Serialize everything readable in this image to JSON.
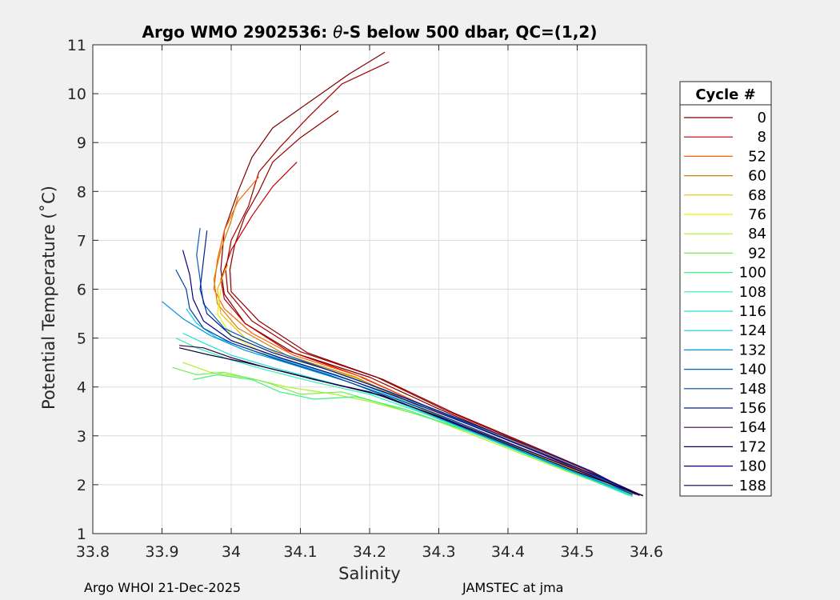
{
  "chart_data": {
    "type": "line",
    "title": "Argo WMO 2902536: θ-S below 500 dbar,  QC=(1,2)",
    "title_parts": {
      "prefix": "Argo WMO 2902536: ",
      "symbol": "θ",
      "suffix": "-S below 500 dbar,  QC=(1,2)"
    },
    "xlabel": "Salinity",
    "ylabel": "Potential Temperature (˚C)",
    "xlim": [
      33.8,
      34.6
    ],
    "ylim": [
      1,
      11
    ],
    "xticks": [
      33.8,
      33.9,
      34.0,
      34.1,
      34.2,
      34.3,
      34.4,
      34.5,
      34.6
    ],
    "xtick_labels": [
      "33.8",
      "33.9",
      "34",
      "34.1",
      "34.2",
      "34.3",
      "34.4",
      "34.5",
      "34.6"
    ],
    "yticks": [
      1,
      2,
      3,
      4,
      5,
      6,
      7,
      8,
      9,
      10,
      11
    ],
    "ytick_labels": [
      "1",
      "2",
      "3",
      "4",
      "5",
      "6",
      "7",
      "8",
      "9",
      "10",
      "11"
    ],
    "grid": true,
    "legend": {
      "title": "Cycle #",
      "placement": "right",
      "entries": [
        {
          "label": "0",
          "color": "#800000"
        },
        {
          "label": "8",
          "color": "#b00000"
        },
        {
          "label": "52",
          "color": "#ff6000"
        },
        {
          "label": "60",
          "color": "#d08000"
        },
        {
          "label": "68",
          "color": "#e8c000"
        },
        {
          "label": "76",
          "color": "#f0f000"
        },
        {
          "label": "84",
          "color": "#b0f020"
        },
        {
          "label": "92",
          "color": "#70f050"
        },
        {
          "label": "100",
          "color": "#40f080"
        },
        {
          "label": "108",
          "color": "#30f0b0"
        },
        {
          "label": "116",
          "color": "#20e0d0"
        },
        {
          "label": "124",
          "color": "#10c8f0"
        },
        {
          "label": "132",
          "color": "#0090e0"
        },
        {
          "label": "140",
          "color": "#0060c0"
        },
        {
          "label": "148",
          "color": "#0040a0"
        },
        {
          "label": "156",
          "color": "#002090"
        },
        {
          "label": "164",
          "color": "#400050"
        },
        {
          "label": "172",
          "color": "#100050"
        },
        {
          "label": "180",
          "color": "#000080"
        },
        {
          "label": "188",
          "color": "#000040"
        }
      ]
    },
    "series": [
      {
        "color": "#800000",
        "points": [
          [
            34.222,
            10.85
          ],
          [
            34.17,
            10.4
          ],
          [
            34.1,
            9.7
          ],
          [
            34.06,
            9.3
          ],
          [
            34.03,
            8.7
          ],
          [
            34.01,
            8.0
          ],
          [
            33.99,
            7.2
          ],
          [
            33.985,
            6.4
          ],
          [
            33.99,
            5.9
          ],
          [
            34.02,
            5.3
          ],
          [
            34.09,
            4.7
          ],
          [
            34.2,
            4.2
          ],
          [
            34.3,
            3.55
          ],
          [
            34.4,
            2.95
          ],
          [
            34.5,
            2.35
          ],
          [
            34.595,
            1.77
          ]
        ]
      },
      {
        "color": "#a00000",
        "points": [
          [
            34.228,
            10.65
          ],
          [
            34.16,
            10.2
          ],
          [
            34.11,
            9.5
          ],
          [
            34.07,
            8.9
          ],
          [
            34.04,
            8.4
          ],
          [
            34.025,
            7.7
          ],
          [
            34.0,
            7.0
          ],
          [
            33.992,
            6.4
          ],
          [
            33.995,
            5.95
          ],
          [
            34.03,
            5.35
          ],
          [
            34.1,
            4.72
          ],
          [
            34.21,
            4.2
          ],
          [
            34.31,
            3.52
          ],
          [
            34.41,
            2.92
          ],
          [
            34.51,
            2.32
          ],
          [
            34.59,
            1.8
          ]
        ]
      },
      {
        "color": "#900000",
        "points": [
          [
            34.155,
            9.65
          ],
          [
            34.1,
            9.1
          ],
          [
            34.06,
            8.6
          ],
          [
            34.04,
            8.0
          ],
          [
            34.02,
            7.5
          ],
          [
            34.005,
            6.9
          ],
          [
            33.998,
            6.4
          ],
          [
            34.0,
            5.95
          ],
          [
            34.04,
            5.35
          ],
          [
            34.11,
            4.7
          ],
          [
            34.22,
            4.15
          ],
          [
            34.32,
            3.48
          ],
          [
            34.42,
            2.88
          ],
          [
            34.52,
            2.28
          ],
          [
            34.585,
            1.8
          ]
        ]
      },
      {
        "color": "#c00000",
        "points": [
          [
            34.095,
            8.6
          ],
          [
            34.06,
            8.1
          ],
          [
            34.03,
            7.5
          ],
          [
            34.0,
            6.8
          ],
          [
            33.985,
            6.2
          ],
          [
            33.99,
            5.8
          ],
          [
            34.02,
            5.3
          ],
          [
            34.08,
            4.75
          ],
          [
            34.18,
            4.25
          ],
          [
            34.29,
            3.55
          ],
          [
            34.4,
            2.92
          ],
          [
            34.5,
            2.32
          ],
          [
            34.59,
            1.78
          ]
        ]
      },
      {
        "color": "#ff6000",
        "points": [
          [
            34.04,
            8.3
          ],
          [
            34.01,
            7.8
          ],
          [
            33.99,
            7.2
          ],
          [
            33.98,
            6.6
          ],
          [
            33.975,
            6.0
          ],
          [
            33.99,
            5.6
          ],
          [
            34.03,
            5.1
          ],
          [
            34.09,
            4.65
          ],
          [
            34.19,
            4.2
          ],
          [
            34.29,
            3.55
          ],
          [
            34.4,
            2.95
          ],
          [
            34.5,
            2.33
          ],
          [
            34.58,
            1.82
          ]
        ]
      },
      {
        "color": "#d08000",
        "points": [
          [
            34.01,
            7.9
          ],
          [
            34.0,
            7.4
          ],
          [
            33.985,
            6.8
          ],
          [
            33.975,
            6.2
          ],
          [
            33.98,
            5.7
          ],
          [
            34.01,
            5.2
          ],
          [
            34.08,
            4.65
          ],
          [
            34.18,
            4.2
          ],
          [
            34.28,
            3.55
          ],
          [
            34.38,
            2.98
          ],
          [
            34.48,
            2.4
          ],
          [
            34.585,
            1.8
          ]
        ]
      },
      {
        "color": "#e8c000",
        "points": [
          [
            33.995,
            6.5
          ],
          [
            33.98,
            6.0
          ],
          [
            33.985,
            5.5
          ],
          [
            34.02,
            5.0
          ],
          [
            34.08,
            4.6
          ],
          [
            34.18,
            4.18
          ],
          [
            34.28,
            3.52
          ],
          [
            34.38,
            2.95
          ],
          [
            34.48,
            2.38
          ],
          [
            34.58,
            1.82
          ]
        ]
      },
      {
        "color": "#f0f000",
        "points": [
          [
            33.985,
            6.0
          ],
          [
            33.98,
            5.5
          ],
          [
            34.0,
            5.05
          ],
          [
            34.06,
            4.6
          ],
          [
            34.16,
            4.15
          ],
          [
            34.27,
            3.55
          ],
          [
            34.38,
            2.92
          ],
          [
            34.48,
            2.35
          ],
          [
            34.58,
            1.8
          ]
        ]
      },
      {
        "color": "#b0f020",
        "points": [
          [
            33.93,
            4.5
          ],
          [
            33.97,
            4.3
          ],
          [
            34.02,
            4.2
          ],
          [
            34.08,
            4.0
          ],
          [
            34.15,
            3.85
          ],
          [
            34.2,
            3.7
          ],
          [
            34.28,
            3.4
          ],
          [
            34.38,
            2.85
          ],
          [
            34.48,
            2.3
          ],
          [
            34.58,
            1.78
          ]
        ]
      },
      {
        "color": "#70f050",
        "points": [
          [
            33.915,
            4.4
          ],
          [
            33.95,
            4.25
          ],
          [
            33.99,
            4.3
          ],
          [
            34.05,
            4.1
          ],
          [
            34.1,
            3.85
          ],
          [
            34.16,
            3.9
          ],
          [
            34.22,
            3.65
          ],
          [
            34.3,
            3.3
          ],
          [
            34.4,
            2.8
          ],
          [
            34.5,
            2.25
          ],
          [
            34.58,
            1.78
          ]
        ]
      },
      {
        "color": "#40f080",
        "points": [
          [
            33.945,
            4.15
          ],
          [
            33.98,
            4.25
          ],
          [
            34.03,
            4.15
          ],
          [
            34.07,
            3.9
          ],
          [
            34.12,
            3.75
          ],
          [
            34.18,
            3.8
          ],
          [
            34.25,
            3.55
          ],
          [
            34.35,
            3.05
          ],
          [
            34.45,
            2.5
          ],
          [
            34.55,
            1.95
          ],
          [
            34.58,
            1.78
          ]
        ]
      },
      {
        "color": "#30f0b0",
        "points": [
          [
            33.92,
            5.0
          ],
          [
            33.95,
            4.8
          ],
          [
            34.0,
            4.55
          ],
          [
            34.05,
            4.35
          ],
          [
            34.12,
            4.1
          ],
          [
            34.2,
            3.85
          ],
          [
            34.28,
            3.45
          ],
          [
            34.38,
            2.88
          ],
          [
            34.48,
            2.32
          ],
          [
            34.575,
            1.78
          ]
        ]
      },
      {
        "color": "#20e0d0",
        "points": [
          [
            33.93,
            5.1
          ],
          [
            33.96,
            4.9
          ],
          [
            34.0,
            4.65
          ],
          [
            34.06,
            4.4
          ],
          [
            34.14,
            4.1
          ],
          [
            34.22,
            3.8
          ],
          [
            34.3,
            3.35
          ],
          [
            34.4,
            2.8
          ],
          [
            34.5,
            2.25
          ],
          [
            34.58,
            1.76
          ]
        ]
      },
      {
        "color": "#10c8f0",
        "points": [
          [
            33.935,
            5.6
          ],
          [
            33.95,
            5.3
          ],
          [
            33.98,
            5.0
          ],
          [
            34.03,
            4.75
          ],
          [
            34.1,
            4.45
          ],
          [
            34.18,
            4.1
          ],
          [
            34.27,
            3.6
          ],
          [
            34.37,
            3.0
          ],
          [
            34.47,
            2.42
          ],
          [
            34.58,
            1.8
          ]
        ]
      },
      {
        "color": "#0090e0",
        "points": [
          [
            33.9,
            5.75
          ],
          [
            33.93,
            5.4
          ],
          [
            33.97,
            5.05
          ],
          [
            34.02,
            4.75
          ],
          [
            34.09,
            4.45
          ],
          [
            34.17,
            4.1
          ],
          [
            34.26,
            3.6
          ],
          [
            34.36,
            3.02
          ],
          [
            34.46,
            2.45
          ],
          [
            34.58,
            1.8
          ]
        ]
      },
      {
        "color": "#0060c0",
        "points": [
          [
            33.955,
            7.25
          ],
          [
            33.95,
            6.7
          ],
          [
            33.955,
            6.2
          ],
          [
            33.96,
            5.7
          ],
          [
            33.99,
            5.2
          ],
          [
            34.05,
            4.8
          ],
          [
            34.12,
            4.45
          ],
          [
            34.2,
            4.05
          ],
          [
            34.3,
            3.5
          ],
          [
            34.4,
            2.92
          ],
          [
            34.5,
            2.35
          ],
          [
            34.585,
            1.8
          ]
        ]
      },
      {
        "color": "#0040a0",
        "points": [
          [
            33.92,
            6.4
          ],
          [
            33.935,
            6.0
          ],
          [
            33.94,
            5.6
          ],
          [
            33.96,
            5.2
          ],
          [
            34.0,
            4.9
          ],
          [
            34.06,
            4.6
          ],
          [
            34.14,
            4.25
          ],
          [
            34.22,
            3.85
          ],
          [
            34.32,
            3.32
          ],
          [
            34.42,
            2.75
          ],
          [
            34.52,
            2.2
          ],
          [
            34.58,
            1.8
          ]
        ]
      },
      {
        "color": "#002090",
        "points": [
          [
            33.965,
            7.2
          ],
          [
            33.96,
            6.6
          ],
          [
            33.955,
            6.0
          ],
          [
            33.965,
            5.5
          ],
          [
            34.0,
            5.05
          ],
          [
            34.06,
            4.7
          ],
          [
            34.14,
            4.35
          ],
          [
            34.22,
            3.95
          ],
          [
            34.32,
            3.4
          ],
          [
            34.42,
            2.85
          ],
          [
            34.52,
            2.28
          ],
          [
            34.585,
            1.8
          ]
        ]
      },
      {
        "color": "#400050",
        "points": [
          [
            33.925,
            4.85
          ],
          [
            33.96,
            4.8
          ],
          [
            34.0,
            4.6
          ],
          [
            34.05,
            4.4
          ],
          [
            34.12,
            4.15
          ],
          [
            34.2,
            3.9
          ],
          [
            34.3,
            3.4
          ],
          [
            34.4,
            2.85
          ],
          [
            34.5,
            2.3
          ],
          [
            34.59,
            1.78
          ]
        ]
      },
      {
        "color": "#000080",
        "points": [
          [
            33.93,
            6.8
          ],
          [
            33.94,
            6.3
          ],
          [
            33.945,
            5.8
          ],
          [
            33.96,
            5.35
          ],
          [
            34.0,
            4.95
          ],
          [
            34.07,
            4.6
          ],
          [
            34.15,
            4.25
          ],
          [
            34.24,
            3.8
          ],
          [
            34.34,
            3.25
          ],
          [
            34.44,
            2.68
          ],
          [
            34.54,
            2.12
          ],
          [
            34.59,
            1.8
          ]
        ]
      },
      {
        "color": "#000040",
        "points": [
          [
            33.925,
            4.8
          ],
          [
            33.97,
            4.65
          ],
          [
            34.02,
            4.5
          ],
          [
            34.08,
            4.3
          ],
          [
            34.15,
            4.05
          ],
          [
            34.22,
            3.82
          ],
          [
            34.3,
            3.38
          ],
          [
            34.4,
            2.82
          ],
          [
            34.5,
            2.26
          ],
          [
            34.595,
            1.78
          ]
        ]
      }
    ]
  },
  "footer": {
    "left": "Argo WHOI 21-Dec-2025",
    "right": "JAMSTEC at jma"
  }
}
